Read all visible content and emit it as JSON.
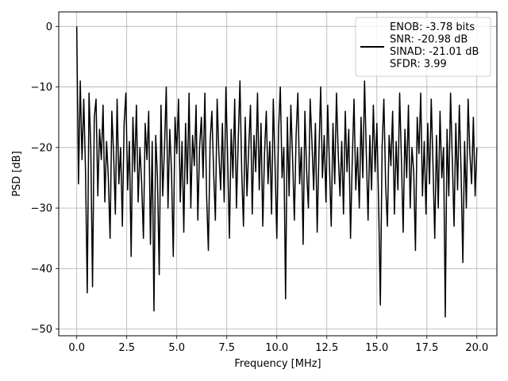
{
  "chart_data": {
    "type": "line",
    "xlabel": "Frequency [MHz]",
    "ylabel": "PSD [dB]",
    "xlim": [
      -0.9,
      21.0
    ],
    "ylim": [
      -51.1,
      2.4
    ],
    "xticks": [
      0.0,
      2.5,
      5.0,
      7.5,
      10.0,
      12.5,
      15.0,
      17.5,
      20.0
    ],
    "xtick_labels": [
      "0.0",
      "2.5",
      "5.0",
      "7.5",
      "10.0",
      "12.5",
      "15.0",
      "17.5",
      "20.0"
    ],
    "yticks": [
      0,
      -10,
      -20,
      -30,
      -40,
      -50
    ],
    "ytick_labels": [
      "0",
      "−10",
      "−20",
      "−30",
      "−40",
      "−50"
    ],
    "grid": true,
    "legend_position": "top-right",
    "series": [
      {
        "name": "ENOB: -3.78 bits\nSNR: -20.98 dB\nSINAD: -21.01 dB\nSFDR: 3.99",
        "color": "#000000",
        "x_start": 0.0,
        "x_end": 20.0,
        "values": [
          0.0,
          -26,
          -9,
          -22,
          -12,
          -24,
          -44,
          -11,
          -20,
          -43,
          -15,
          -12,
          -28,
          -17,
          -22,
          -13,
          -29,
          -19,
          -25,
          -35,
          -14,
          -21,
          -31,
          -12,
          -26,
          -20,
          -33,
          -16,
          -11,
          -27,
          -19,
          -38,
          -15,
          -24,
          -13,
          -29,
          -20,
          -26,
          -35,
          -16,
          -22,
          -14,
          -36,
          -19,
          -47,
          -18,
          -25,
          -41,
          -13,
          -28,
          -20,
          -10,
          -30,
          -17,
          -24,
          -38,
          -15,
          -21,
          -12,
          -29,
          -19,
          -34,
          -16,
          -26,
          -11,
          -30,
          -18,
          -23,
          -13,
          -32,
          -20,
          -15,
          -25,
          -11,
          -28,
          -37,
          -19,
          -14,
          -24,
          -32,
          -12,
          -21,
          -27,
          -16,
          -29,
          -10,
          -22,
          -35,
          -17,
          -25,
          -12,
          -30,
          -19,
          -9,
          -24,
          -33,
          -15,
          -28,
          -20,
          -13,
          -31,
          -18,
          -24,
          -11,
          -27,
          -16,
          -33,
          -21,
          -14,
          -26,
          -19,
          -31,
          -12,
          -23,
          -35,
          -17,
          -10,
          -25,
          -20,
          -45,
          -15,
          -28,
          -13,
          -22,
          -32,
          -18,
          -11,
          -26,
          -20,
          -36,
          -14,
          -24,
          -30,
          -12,
          -19,
          -27,
          -16,
          -34,
          -21,
          -10,
          -25,
          -18,
          -29,
          -13,
          -23,
          -33,
          -16,
          -26,
          -11,
          -21,
          -28,
          -19,
          -31,
          -14,
          -24,
          -17,
          -35,
          -22,
          -12,
          -27,
          -20,
          -30,
          -15,
          -25,
          -9,
          -21,
          -32,
          -18,
          -27,
          -13,
          -24,
          -16,
          -29,
          -46,
          -20,
          -12,
          -26,
          -33,
          -18,
          -23,
          -14,
          -31,
          -19,
          -27,
          -11,
          -22,
          -34,
          -17,
          -25,
          -13,
          -30,
          -20,
          -24,
          -37,
          -15,
          -21,
          -11,
          -28,
          -19,
          -31,
          -16,
          -26,
          -12,
          -23,
          -35,
          -18,
          -30,
          -14,
          -25,
          -20,
          -48,
          -17,
          -28,
          -11,
          -22,
          -33,
          -16,
          -27,
          -13,
          -24,
          -39,
          -19,
          -30,
          -12,
          -21,
          -26,
          -15,
          -28,
          -20
        ]
      }
    ]
  }
}
